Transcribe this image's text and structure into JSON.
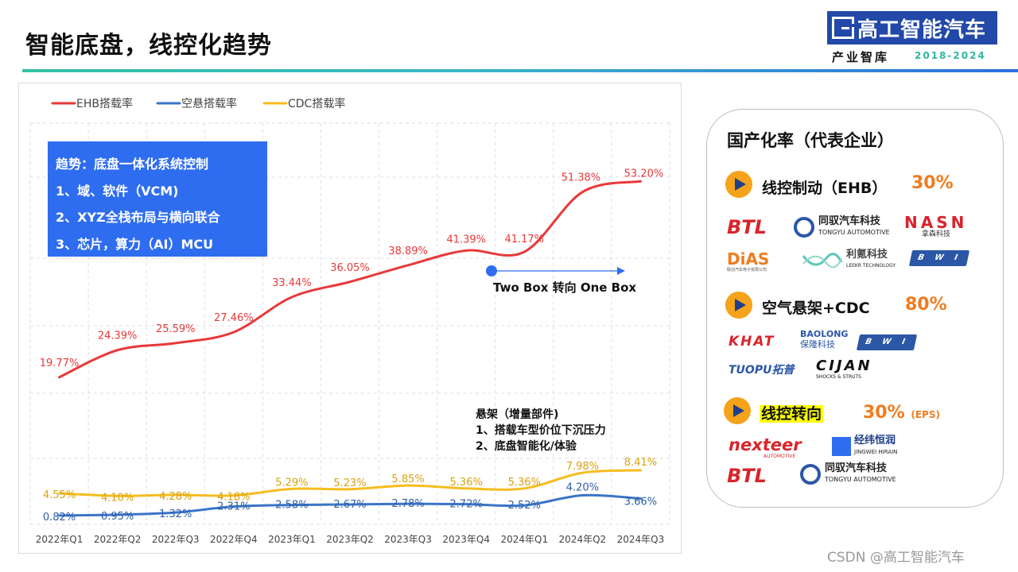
{
  "header": {
    "title": "智能底盘，线控化趋势",
    "brand_name": "高工智能汽车",
    "brand_sub": "产业智库",
    "brand_years": "2018-2024"
  },
  "colors": {
    "ehb": "#e8393a",
    "air": "#3a74c8",
    "cdc": "#f5bd1f",
    "accent_blue": "#2f6df0",
    "pct_orange": "#f07c1f"
  },
  "chart_data": {
    "type": "line",
    "categories": [
      "2022年Q1",
      "2022年Q2",
      "2022年Q3",
      "2022年Q4",
      "2023年Q1",
      "2023年Q2",
      "2023年Q3",
      "2023年Q4",
      "2024年Q1",
      "2024年Q2",
      "2024年Q3"
    ],
    "series": [
      {
        "name": "EHB搭载率",
        "color": "#e8393a",
        "values": [
          19.77,
          24.39,
          25.59,
          27.46,
          33.44,
          36.05,
          38.89,
          41.39,
          41.17,
          51.38,
          53.2
        ]
      },
      {
        "name": "空悬搭载率",
        "color": "#3a74c8",
        "values": [
          0.82,
          0.95,
          1.32,
          2.31,
          2.58,
          2.67,
          2.78,
          2.72,
          2.52,
          4.2,
          3.66
        ]
      },
      {
        "name": "CDC搭载率",
        "color": "#f5bd1f",
        "values": [
          4.55,
          4.1,
          4.28,
          4.18,
          5.29,
          5.23,
          5.85,
          5.36,
          5.36,
          7.98,
          8.41
        ]
      }
    ],
    "labels": {
      "EHB搭载率": [
        "19.77%",
        "24.39%",
        "25.59%",
        "27.46%",
        "33.44%",
        "36.05%",
        "38.89%",
        "41.39%",
        "41.17%",
        "51.38%",
        "53.20%"
      ],
      "空悬搭载率": [
        "0.82%",
        "0.95%",
        "1.32%",
        "2.31%",
        "2.58%",
        "2.67%",
        "2.78%",
        "2.72%",
        "2.52%",
        "4.20%",
        "3.66%"
      ],
      "CDC搭载率": [
        "4.55%",
        "4.10%",
        "4.28%",
        "4.18%",
        "5.29%",
        "5.23%",
        "5.85%",
        "5.36%",
        "5.36%",
        "7.98%",
        "8.41%"
      ]
    },
    "legend_position": "top-left",
    "grid": true,
    "annotation": "Two Box 转向 One Box"
  },
  "trend_box": {
    "line1": "趋势：底盘一体化系统控制",
    "line2": "1、域、软件（VCM)",
    "line3": "2、XYZ全栈布局与横向联合",
    "line4": "3、芯片，算力（AI）MCU"
  },
  "suspension_note": {
    "line1": "悬架（增量部件)",
    "line2": "1、搭载车型价位下沉压力",
    "line3": "2、底盘智能化/体验"
  },
  "localization": {
    "title": "国产化率（代表企业）",
    "categories": [
      {
        "label": "线控制动（EHB）",
        "pct": "30%"
      },
      {
        "label": "空气悬架+CDC",
        "pct": "80%"
      },
      {
        "label": "线控转向",
        "pct": "30%",
        "note": "(EPS)"
      }
    ],
    "logos": {
      "btl": "BTL",
      "tongyu_cn": "同驭汽车科技",
      "tongyu_en": "TONGYU AUTOMOTIVE",
      "nasn": "NASN",
      "nasn_cn": "拿森科技",
      "dias": "DiAS",
      "dias_sub": "联创汽车电子有限公司",
      "leekr_cn": "利氪科技",
      "leekr_en": "LEEKR TECHNOLOGY",
      "bwi": "BWI",
      "khat": "KHAT",
      "baolong": "BAOLONG",
      "baolong_cn": "保隆科技",
      "tuopu": "TUOPU拓普",
      "cijan": "CIJAN",
      "cijan_sub": "SHOCKS & STRUTS",
      "nexteer": "nexteer",
      "nexteer_sub": "AUTOMOTIVE",
      "jingwei_cn": "经纬恒润",
      "jingwei_en": "JINGWEI HIRAIN"
    }
  },
  "watermark": "CSDN @高工智能汽车"
}
